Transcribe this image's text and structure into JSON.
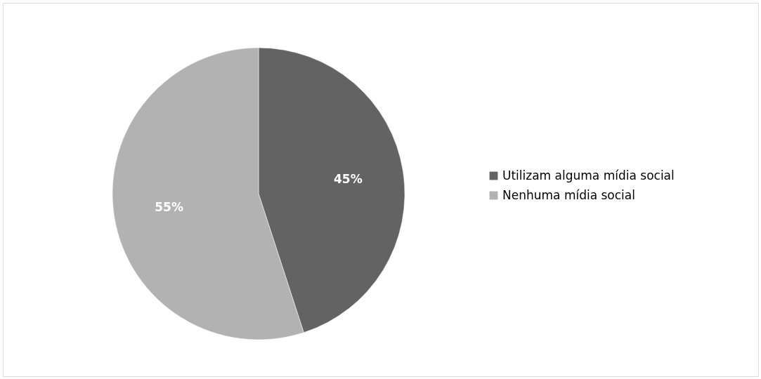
{
  "chart_data": {
    "type": "pie",
    "categories": [
      "Utilizam alguma mídia social",
      "Nenhuma mídia social"
    ],
    "values": [
      45,
      55
    ],
    "colors": [
      "#636363",
      "#b2b2b2"
    ],
    "value_labels": [
      "45%",
      "55%"
    ],
    "legend": "right"
  }
}
